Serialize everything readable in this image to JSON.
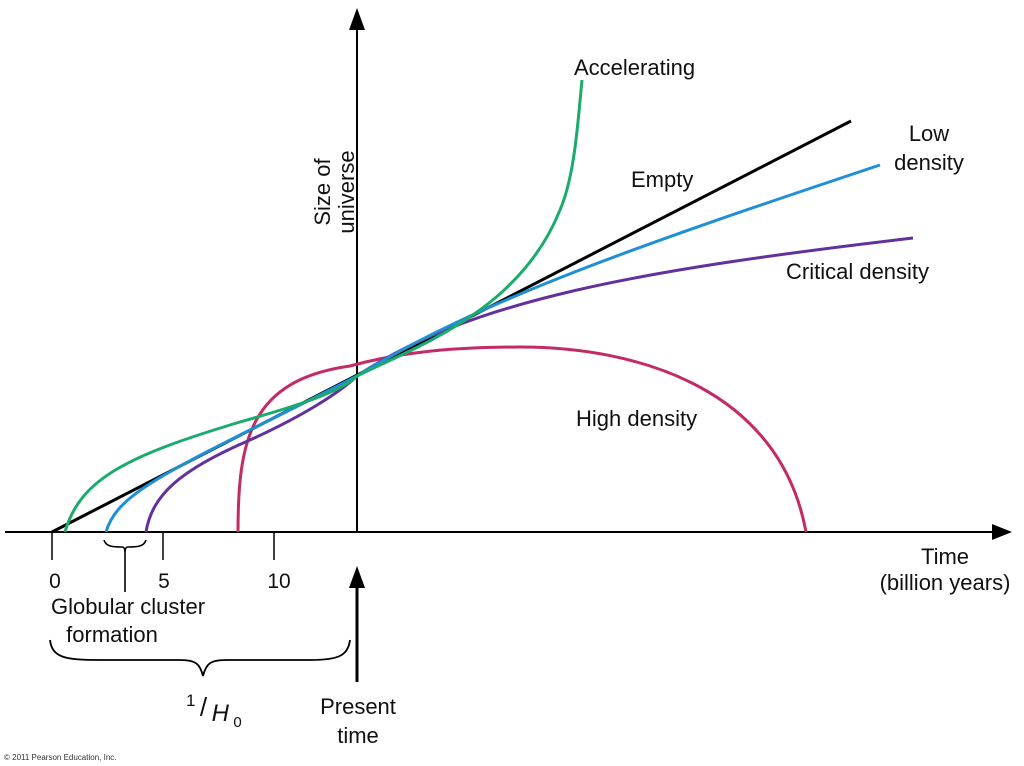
{
  "axes": {
    "y_label_line1": "Size of",
    "y_label_line2": "universe",
    "x_label_line1": "Time",
    "x_label_line2": "(billion years)",
    "ticks": [
      "0",
      "5",
      "10"
    ]
  },
  "curves": [
    {
      "id": "accelerating",
      "label": "Accelerating",
      "color": "#1bab6c"
    },
    {
      "id": "empty",
      "label": "Empty",
      "color": "#000000"
    },
    {
      "id": "low-density",
      "label_line1": "Low",
      "label_line2": "density",
      "color": "#1f8fd6"
    },
    {
      "id": "critical-density",
      "label": "Critical density",
      "color": "#62319b"
    },
    {
      "id": "high-density",
      "label": "High density",
      "color": "#c42a66"
    }
  ],
  "annotations": {
    "globular_line1": "Globular cluster",
    "globular_line2": "formation",
    "hubble_numerator": "1",
    "hubble_slash": "/",
    "hubble_symbol": "H",
    "hubble_subscript": "0",
    "present_line1": "Present",
    "present_line2": "time"
  },
  "copyright": "© 2011 Pearson Education, Inc."
}
